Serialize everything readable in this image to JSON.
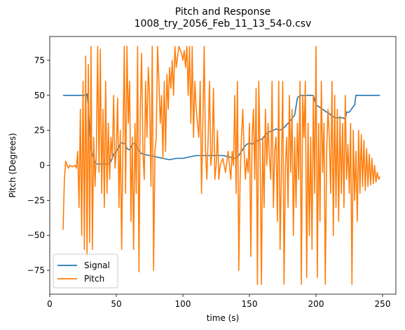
{
  "chart_data": {
    "type": "line",
    "title": "Pitch and Response",
    "subtitle": "1008_try_2056_Feb_11_13_54-0.csv",
    "xlabel": "time (s)",
    "ylabel": "Pitch (Degrees)",
    "xlim": [
      0,
      260
    ],
    "ylim": [
      -92,
      92
    ],
    "xticks": [
      0,
      50,
      100,
      150,
      200,
      250
    ],
    "yticks": [
      -75,
      -50,
      -25,
      0,
      25,
      50,
      75
    ],
    "grid": false,
    "legend_position": "lower-left",
    "series": [
      {
        "name": "Signal",
        "color": "#1f77b4",
        "points": [
          [
            10,
            50
          ],
          [
            26,
            50
          ],
          [
            28,
            51
          ],
          [
            29,
            42
          ],
          [
            30,
            25
          ],
          [
            31,
            12
          ],
          [
            32,
            8
          ],
          [
            33,
            5
          ],
          [
            34,
            2
          ],
          [
            35,
            1
          ],
          [
            40,
            1
          ],
          [
            45,
            1
          ],
          [
            46,
            3
          ],
          [
            47,
            5
          ],
          [
            48,
            8
          ],
          [
            50,
            10
          ],
          [
            52,
            13
          ],
          [
            53,
            16
          ],
          [
            55,
            16
          ],
          [
            57,
            15
          ],
          [
            58,
            12
          ],
          [
            60,
            11
          ],
          [
            62,
            15
          ],
          [
            64,
            16
          ],
          [
            66,
            12
          ],
          [
            68,
            9
          ],
          [
            70,
            8
          ],
          [
            75,
            7
          ],
          [
            80,
            6
          ],
          [
            85,
            5
          ],
          [
            90,
            4
          ],
          [
            95,
            5
          ],
          [
            100,
            5
          ],
          [
            105,
            6
          ],
          [
            110,
            7
          ],
          [
            120,
            7
          ],
          [
            130,
            7
          ],
          [
            135,
            6
          ],
          [
            138,
            5
          ],
          [
            140,
            5
          ],
          [
            142,
            7
          ],
          [
            144,
            10
          ],
          [
            146,
            13
          ],
          [
            148,
            15
          ],
          [
            150,
            16
          ],
          [
            152,
            15
          ],
          [
            155,
            17
          ],
          [
            157,
            18
          ],
          [
            160,
            19
          ],
          [
            162,
            22
          ],
          [
            165,
            24
          ],
          [
            168,
            25
          ],
          [
            170,
            26
          ],
          [
            172,
            25
          ],
          [
            175,
            26
          ],
          [
            180,
            31
          ],
          [
            184,
            36
          ],
          [
            186,
            48
          ],
          [
            188,
            50
          ],
          [
            198,
            50
          ],
          [
            200,
            43
          ],
          [
            202,
            42
          ],
          [
            205,
            40
          ],
          [
            208,
            38
          ],
          [
            210,
            37
          ],
          [
            212,
            35
          ],
          [
            215,
            34
          ],
          [
            220,
            34
          ],
          [
            222,
            33
          ],
          [
            223,
            38
          ],
          [
            225,
            38
          ],
          [
            228,
            42
          ],
          [
            229,
            43
          ],
          [
            230,
            50
          ],
          [
            248,
            50
          ]
        ]
      },
      {
        "name": "Pitch",
        "color": "#ff7f0e",
        "points": [
          [
            10,
            -46
          ],
          [
            11,
            -10
          ],
          [
            12,
            3
          ],
          [
            13,
            0
          ],
          [
            14,
            -2
          ],
          [
            15,
            0
          ],
          [
            17,
            -1
          ],
          [
            19,
            0
          ],
          [
            20,
            -2
          ],
          [
            21,
            10
          ],
          [
            22,
            -30
          ],
          [
            23,
            40
          ],
          [
            24,
            -50
          ],
          [
            25,
            60
          ],
          [
            26,
            -60
          ],
          [
            27,
            78
          ],
          [
            28,
            -65
          ],
          [
            29,
            72
          ],
          [
            30,
            -55
          ],
          [
            31,
            85
          ],
          [
            32,
            -60
          ],
          [
            33,
            20
          ],
          [
            34,
            -15
          ],
          [
            35,
            10
          ],
          [
            36,
            85
          ],
          [
            37,
            -5
          ],
          [
            38,
            83
          ],
          [
            39,
            -20
          ],
          [
            40,
            40
          ],
          [
            41,
            -30
          ],
          [
            42,
            60
          ],
          [
            43,
            -20
          ],
          [
            44,
            30
          ],
          [
            45,
            -10
          ],
          [
            46,
            20
          ],
          [
            47,
            5
          ],
          [
            48,
            50
          ],
          [
            49,
            -2
          ],
          [
            50,
            10
          ],
          [
            51,
            48
          ],
          [
            52,
            -30
          ],
          [
            53,
            25
          ],
          [
            54,
            -60
          ],
          [
            55,
            15
          ],
          [
            56,
            85
          ],
          [
            57,
            -20
          ],
          [
            58,
            85
          ],
          [
            59,
            30
          ],
          [
            60,
            60
          ],
          [
            61,
            -40
          ],
          [
            62,
            20
          ],
          [
            63,
            -60
          ],
          [
            64,
            30
          ],
          [
            65,
            -20
          ],
          [
            66,
            85
          ],
          [
            67,
            -76
          ],
          [
            68,
            40
          ],
          [
            69,
            80
          ],
          [
            70,
            10
          ],
          [
            71,
            -10
          ],
          [
            72,
            60
          ],
          [
            73,
            20
          ],
          [
            74,
            70
          ],
          [
            75,
            50
          ],
          [
            76,
            -15
          ],
          [
            77,
            85
          ],
          [
            78,
            -75
          ],
          [
            79,
            10
          ],
          [
            80,
            20
          ],
          [
            81,
            85
          ],
          [
            82,
            60
          ],
          [
            83,
            30
          ],
          [
            84,
            50
          ],
          [
            85,
            5
          ],
          [
            86,
            60
          ],
          [
            87,
            10
          ],
          [
            88,
            65
          ],
          [
            89,
            40
          ],
          [
            90,
            70
          ],
          [
            91,
            55
          ],
          [
            92,
            75
          ],
          [
            93,
            50
          ],
          [
            94,
            85
          ],
          [
            95,
            70
          ],
          [
            97,
            85
          ],
          [
            99,
            80
          ],
          [
            100,
            75
          ],
          [
            101,
            82
          ],
          [
            102,
            70
          ],
          [
            103,
            85
          ],
          [
            104,
            50
          ],
          [
            105,
            85
          ],
          [
            106,
            30
          ],
          [
            107,
            85
          ],
          [
            108,
            20
          ],
          [
            109,
            60
          ],
          [
            110,
            40
          ],
          [
            111,
            30
          ],
          [
            112,
            20
          ],
          [
            113,
            60
          ],
          [
            114,
            -20
          ],
          [
            115,
            30
          ],
          [
            116,
            85
          ],
          [
            117,
            10
          ],
          [
            118,
            -10
          ],
          [
            119,
            20
          ],
          [
            120,
            60
          ],
          [
            121,
            0
          ],
          [
            122,
            10
          ],
          [
            123,
            55
          ],
          [
            124,
            -10
          ],
          [
            125,
            0
          ],
          [
            126,
            25
          ],
          [
            127,
            -10
          ],
          [
            128,
            0
          ],
          [
            130,
            5
          ],
          [
            132,
            -5
          ],
          [
            134,
            10
          ],
          [
            136,
            -10
          ],
          [
            137,
            10
          ],
          [
            138,
            0
          ],
          [
            139,
            50
          ],
          [
            140,
            -20
          ],
          [
            141,
            60
          ],
          [
            142,
            -75
          ],
          [
            143,
            -10
          ],
          [
            144,
            20
          ],
          [
            145,
            40
          ],
          [
            146,
            10
          ],
          [
            147,
            -10
          ],
          [
            148,
            5
          ],
          [
            149,
            -5
          ],
          [
            150,
            30
          ],
          [
            151,
            -65
          ],
          [
            152,
            20
          ],
          [
            153,
            40
          ],
          [
            154,
            -10
          ],
          [
            155,
            55
          ],
          [
            156,
            -85
          ],
          [
            157,
            60
          ],
          [
            158,
            10
          ],
          [
            159,
            -85
          ],
          [
            160,
            20
          ],
          [
            161,
            -30
          ],
          [
            162,
            40
          ],
          [
            163,
            0
          ],
          [
            164,
            30
          ],
          [
            165,
            5
          ],
          [
            166,
            -10
          ],
          [
            167,
            60
          ],
          [
            168,
            -30
          ],
          [
            169,
            10
          ],
          [
            170,
            20
          ],
          [
            171,
            -40
          ],
          [
            172,
            60
          ],
          [
            173,
            -60
          ],
          [
            174,
            -5
          ],
          [
            175,
            60
          ],
          [
            176,
            -85
          ],
          [
            177,
            0
          ],
          [
            178,
            20
          ],
          [
            179,
            -30
          ],
          [
            180,
            50
          ],
          [
            181,
            -5
          ],
          [
            182,
            40
          ],
          [
            183,
            -50
          ],
          [
            184,
            20
          ],
          [
            185,
            -30
          ],
          [
            186,
            30
          ],
          [
            187,
            -10
          ],
          [
            188,
            60
          ],
          [
            189,
            -85
          ],
          [
            190,
            50
          ],
          [
            191,
            20
          ],
          [
            192,
            60
          ],
          [
            193,
            -80
          ],
          [
            194,
            30
          ],
          [
            195,
            -50
          ],
          [
            196,
            20
          ],
          [
            197,
            -60
          ],
          [
            198,
            50
          ],
          [
            199,
            -20
          ],
          [
            200,
            85
          ],
          [
            201,
            -80
          ],
          [
            202,
            30
          ],
          [
            203,
            -40
          ],
          [
            204,
            60
          ],
          [
            205,
            -5
          ],
          [
            206,
            30
          ],
          [
            207,
            -85
          ],
          [
            208,
            10
          ],
          [
            209,
            40
          ],
          [
            210,
            20
          ],
          [
            211,
            -20
          ],
          [
            212,
            60
          ],
          [
            213,
            -50
          ],
          [
            214,
            50
          ],
          [
            215,
            -30
          ],
          [
            216,
            40
          ],
          [
            217,
            -40
          ],
          [
            218,
            35
          ],
          [
            219,
            -20
          ],
          [
            220,
            30
          ],
          [
            221,
            -30
          ],
          [
            222,
            50
          ],
          [
            223,
            -10
          ],
          [
            224,
            15
          ],
          [
            225,
            -20
          ],
          [
            226,
            30
          ],
          [
            227,
            -85
          ],
          [
            228,
            25
          ],
          [
            229,
            -25
          ],
          [
            230,
            10
          ],
          [
            231,
            -40
          ],
          [
            232,
            25
          ],
          [
            233,
            -20
          ],
          [
            234,
            22
          ],
          [
            235,
            -15
          ],
          [
            236,
            18
          ],
          [
            237,
            -18
          ],
          [
            238,
            12
          ],
          [
            239,
            -15
          ],
          [
            240,
            8
          ],
          [
            241,
            -14
          ],
          [
            242,
            5
          ],
          [
            243,
            -13
          ],
          [
            244,
            0
          ],
          [
            245,
            -12
          ],
          [
            246,
            -5
          ],
          [
            247,
            -10
          ],
          [
            248,
            -8
          ]
        ]
      }
    ]
  }
}
